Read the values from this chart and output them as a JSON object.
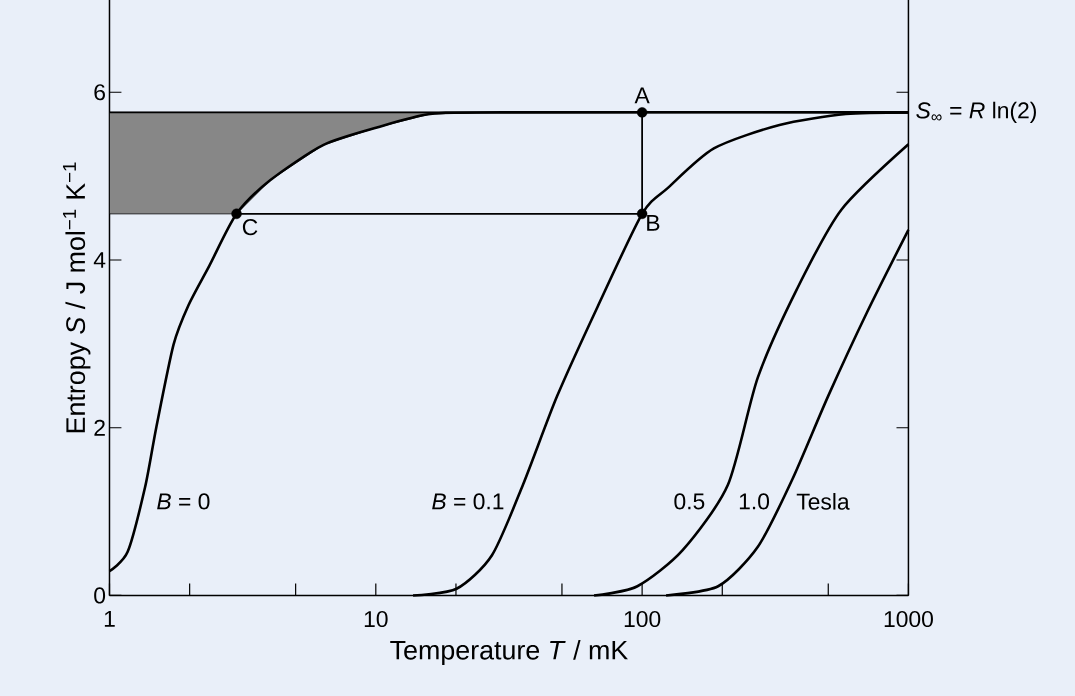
{
  "chart_data": {
    "type": "line",
    "xlabel": "Temperature *T* / mK",
    "ylabel": "Entropy *S*  /  J mol$^{−1}$ K$^{−1}$",
    "log": "x",
    "xlim": [
      1,
      1000
    ],
    "ylim": [
      0,
      7.1
    ],
    "xticks": [
      1,
      {
        "value": 2,
        "label": null
      },
      {
        "value": 5,
        "label": null
      },
      10,
      {
        "value": 20,
        "label": null
      },
      {
        "value": 50,
        "label": null
      },
      100,
      {
        "value": 200,
        "label": null
      },
      {
        "value": 500,
        "label": null
      },
      1000
    ],
    "yticks": [
      0,
      2,
      4,
      6
    ],
    "series": [
      {
        "name": "*B* = 0",
        "color": "#000000",
        "x": [
          1,
          1.17,
          1.36,
          1.5,
          1.74,
          1.98,
          2.37,
          3,
          4.01,
          6.34,
          10.1,
          16,
          30,
          1000
        ],
        "values": [
          0.29,
          0.52,
          1.29,
          2.01,
          2.99,
          3.46,
          3.93,
          4.55,
          4.95,
          5.37,
          5.58,
          5.74,
          5.76,
          5.76
        ],
        "lower": [
          4.55,
          4.55,
          4.55,
          4.55,
          4.55,
          4.55,
          4.55,
          4.55,
          4.95,
          5.37,
          5.58,
          5.74,
          5.76,
          null
        ],
        "upper": [
          5.76,
          5.76,
          5.76,
          5.76,
          5.76,
          5.76,
          5.76,
          5.76,
          5.76,
          5.76,
          5.76,
          5.76,
          5.76,
          null
        ]
      },
      {
        "name": "*B* = 0.1",
        "color": "#000000",
        "x": [
          13.8,
          20.1,
          27.3,
          35.7,
          48,
          68,
          100,
          125,
          186,
          328,
          582,
          1000
        ],
        "values": [
          0,
          0.08,
          0.48,
          1.32,
          2.38,
          3.44,
          4.55,
          4.86,
          5.33,
          5.61,
          5.74,
          5.76
        ]
      },
      {
        "name": "0.5",
        "color": "#000000",
        "x": [
          66,
          96,
          142,
          210,
          272,
          381,
          560,
          1000
        ],
        "values": [
          0,
          0.11,
          0.54,
          1.32,
          2.6,
          3.65,
          4.6,
          5.38
        ]
      },
      {
        "name": "1.0",
        "color": "#000000",
        "x": [
          123,
          193,
          272,
          366,
          500,
          700,
          1000
        ],
        "values": [
          0,
          0.11,
          0.58,
          1.38,
          2.38,
          3.38,
          4.36
        ]
      },
      {
        "color": "#000000",
        "x": [
          1000,
          100,
          1
        ],
        "values": [
          5.76,
          5.76,
          5.76
        ]
      },
      {
        "color": "#000000",
        "x": [
          100,
          100
        ],
        "values": [
          5.76,
          4.55
        ]
      },
      {
        "color": "#000000",
        "x": [
          100,
          3
        ],
        "values": [
          4.55,
          4.55
        ]
      },
      {
        "type": "scatter",
        "marker": "circle",
        "color": "#000000",
        "x": [
          100,
          100,
          3
        ],
        "values": [
          5.76,
          4.55,
          4.55
        ]
      }
    ],
    "annotations": [
      {
        "text": "A",
        "x": 100,
        "y": 5.76
      },
      {
        "text": "B",
        "x": 100,
        "y": 4.55
      },
      {
        "text": "C",
        "x": 3,
        "y": 4.55
      },
      {
        "text": "*S*$_{∞}$ = *R* ln(2)",
        "x": 1000,
        "y": 5.76
      },
      "Tesla"
    ]
  }
}
